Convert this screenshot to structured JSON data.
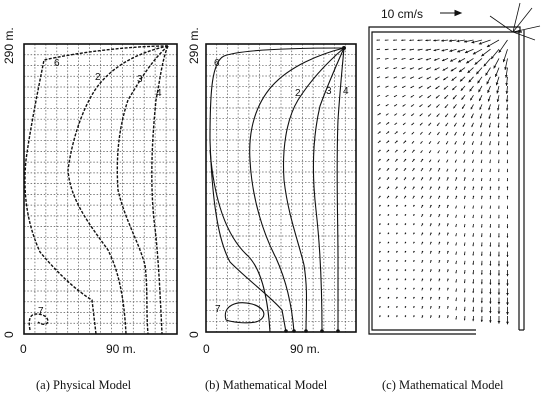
{
  "panels": [
    {
      "caption": "(a) Physical Model",
      "y_top": "290 m.",
      "y_bottom": "0",
      "x_left": "0",
      "x_mid": "90 m.",
      "contour_labels": [
        "6",
        "2",
        "3",
        "4",
        "7"
      ]
    },
    {
      "caption": "(b) Mathematical Model",
      "y_top": "290 m.",
      "y_bottom": "0",
      "x_left": "0",
      "x_mid": "90 m.",
      "contour_labels": [
        "6",
        "2",
        "3",
        "4",
        "7"
      ]
    },
    {
      "caption": "(c) Mathematical Model",
      "velocity_scale": "10 cm/s"
    }
  ],
  "colors": {
    "ink": "#111111",
    "grid": "#666666",
    "background": "#ffffff"
  }
}
